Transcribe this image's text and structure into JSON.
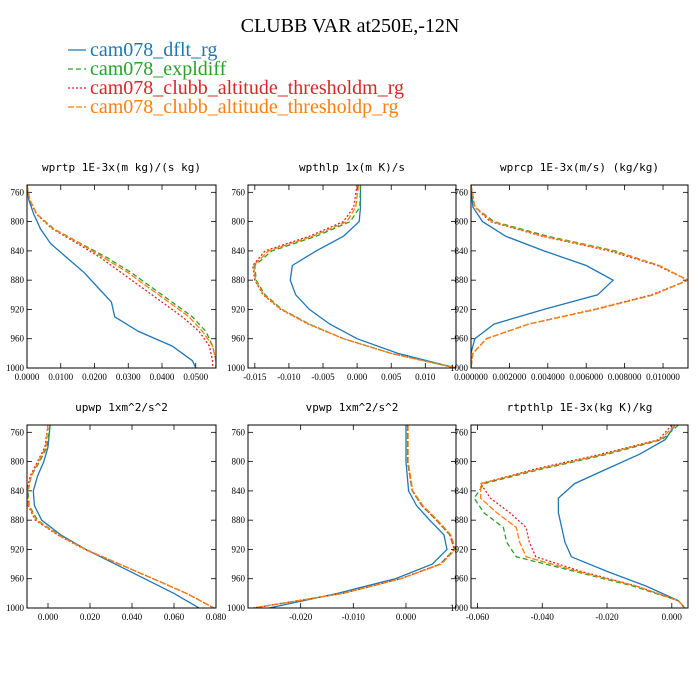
{
  "figure": {
    "title": "CLUBB VAR at250E,-12N"
  },
  "legend": [
    {
      "name": "cam078_dflt_rg",
      "color": "#1f77b4",
      "dash": ""
    },
    {
      "name": "cam078_expldiff",
      "color": "#2ca02c",
      "dash": "5,3"
    },
    {
      "name": "cam078_clubb_altitude_thresholdm_rg",
      "color": "#d62728",
      "dash": "2,2"
    },
    {
      "name": "cam078_clubb_altitude_thresholdp_rg",
      "color": "#ff7f0e",
      "dash": "6,2"
    }
  ],
  "chart_data": [
    {
      "type": "line",
      "title": "wprtp  1E-3x(m kg)/(s kg)",
      "xlim": [
        0.0,
        0.056
      ],
      "ylim": [
        1000,
        750
      ],
      "xticks": [
        0.0,
        0.01,
        0.02,
        0.03,
        0.04,
        0.05
      ],
      "xticklabels": [
        "0.0000",
        "0.0100",
        "0.0200",
        "0.0300",
        "0.0400",
        "0.0500"
      ],
      "yticks": [
        760,
        800,
        840,
        880,
        920,
        960,
        1000
      ],
      "y": [
        750,
        770,
        790,
        810,
        830,
        850,
        870,
        890,
        910,
        930,
        950,
        970,
        990,
        1000
      ],
      "series": [
        {
          "name": "cam078_dflt_rg",
          "x": [
            0.0,
            0.0005,
            0.002,
            0.004,
            0.007,
            0.012,
            0.017,
            0.021,
            0.025,
            0.026,
            0.033,
            0.043,
            0.049,
            0.05
          ]
        },
        {
          "name": "cam078_expldiff",
          "x": [
            0.0,
            0.0008,
            0.003,
            0.008,
            0.016,
            0.024,
            0.031,
            0.037,
            0.043,
            0.049,
            0.053,
            0.055,
            0.056,
            0.056
          ]
        },
        {
          "name": "cam078_clubb_altitude_thresholdm_rg",
          "x": [
            0.0,
            0.0007,
            0.0028,
            0.0075,
            0.015,
            0.022,
            0.028,
            0.034,
            0.04,
            0.046,
            0.051,
            0.054,
            0.055,
            0.055
          ]
        },
        {
          "name": "cam078_clubb_altitude_thresholdp_rg",
          "x": [
            0.0,
            0.0008,
            0.003,
            0.0078,
            0.0158,
            0.023,
            0.03,
            0.036,
            0.042,
            0.048,
            0.052,
            0.055,
            0.056,
            0.056
          ]
        }
      ]
    },
    {
      "type": "line",
      "title": "wpthlp  1x(m K)/s",
      "xlim": [
        -0.016,
        0.0145
      ],
      "ylim": [
        1000,
        750
      ],
      "xticks": [
        -0.015,
        -0.01,
        -0.005,
        0.0,
        0.005,
        0.01
      ],
      "xticklabels": [
        "-0.015",
        "-0.010",
        "-0.005",
        "0.000",
        "0.005",
        "0.010"
      ],
      "yticks": [
        760,
        800,
        840,
        880,
        920,
        960,
        1000
      ],
      "y": [
        750,
        780,
        800,
        820,
        840,
        860,
        880,
        900,
        920,
        940,
        960,
        980,
        1000
      ],
      "series": [
        {
          "name": "cam078_dflt_rg",
          "x": [
            0.0005,
            0.0005,
            0.0003,
            -0.002,
            -0.006,
            -0.0095,
            -0.0098,
            -0.009,
            -0.007,
            -0.004,
            0.0,
            0.006,
            0.0145
          ]
        },
        {
          "name": "cam078_expldiff",
          "x": [
            0.0005,
            0.0004,
            -0.001,
            -0.006,
            -0.0125,
            -0.015,
            -0.0148,
            -0.0135,
            -0.011,
            -0.007,
            -0.002,
            0.005,
            0.0145
          ]
        },
        {
          "name": "cam078_clubb_altitude_thresholdm_rg",
          "x": [
            0.0,
            -0.0005,
            -0.002,
            -0.007,
            -0.0135,
            -0.0153,
            -0.015,
            -0.0138,
            -0.0112,
            -0.0072,
            -0.002,
            0.005,
            0.0145
          ]
        },
        {
          "name": "cam078_clubb_altitude_thresholdp_rg",
          "x": [
            0.0002,
            -0.0002,
            -0.0015,
            -0.0065,
            -0.013,
            -0.0152,
            -0.0149,
            -0.0137,
            -0.0111,
            -0.0071,
            -0.002,
            0.005,
            0.0145
          ]
        }
      ]
    },
    {
      "type": "line",
      "title": "wprcp  1E-3x(m/s) (kg/kg)",
      "xlim": [
        0.0,
        0.0113
      ],
      "ylim": [
        1000,
        750
      ],
      "xticks": [
        0.0,
        0.002,
        0.004,
        0.006,
        0.008,
        0.01
      ],
      "xticklabels": [
        "0.000000",
        "0.002000",
        "0.004000",
        "0.006000",
        "0.008000",
        "0.010000"
      ],
      "yticks": [
        760,
        800,
        840,
        880,
        920,
        960,
        1000
      ],
      "y": [
        750,
        780,
        800,
        820,
        840,
        860,
        880,
        900,
        920,
        940,
        960,
        980,
        1000
      ],
      "series": [
        {
          "name": "cam078_dflt_rg",
          "x": [
            0.0,
            0.0001,
            0.0006,
            0.0018,
            0.0038,
            0.006,
            0.0074,
            0.0066,
            0.0038,
            0.0012,
            0.0002,
            0.0,
            0.0
          ]
        },
        {
          "name": "cam078_expldiff",
          "x": [
            0.0,
            0.0002,
            0.0012,
            0.004,
            0.0075,
            0.0098,
            0.0113,
            0.0095,
            0.0065,
            0.003,
            0.0008,
            0.0001,
            0.0
          ]
        },
        {
          "name": "cam078_clubb_altitude_thresholdm_rg",
          "x": [
            0.0,
            0.0002,
            0.001,
            0.0037,
            0.0072,
            0.0097,
            0.0113,
            0.0094,
            0.0064,
            0.003,
            0.0008,
            0.0001,
            0.0
          ]
        },
        {
          "name": "cam078_clubb_altitude_thresholdp_rg",
          "x": [
            0.0,
            0.0002,
            0.0011,
            0.0038,
            0.0074,
            0.0098,
            0.0113,
            0.0095,
            0.0065,
            0.003,
            0.0008,
            0.0001,
            0.0
          ]
        }
      ]
    },
    {
      "type": "line",
      "title": "upwp  1xm^2/s^2",
      "xlim": [
        -0.01,
        0.08
      ],
      "ylim": [
        1000,
        750
      ],
      "xticks": [
        0.0,
        0.02,
        0.04,
        0.06,
        0.08
      ],
      "xticklabels": [
        "0.000",
        "0.020",
        "0.040",
        "0.060",
        "0.080"
      ],
      "yticks": [
        760,
        800,
        840,
        880,
        920,
        960,
        1000
      ],
      "y": [
        750,
        780,
        800,
        820,
        840,
        860,
        880,
        900,
        920,
        940,
        960,
        980,
        1000
      ],
      "series": [
        {
          "name": "cam078_dflt_rg",
          "x": [
            0.001,
            0.0,
            -0.002,
            -0.005,
            -0.007,
            -0.0065,
            -0.003,
            0.006,
            0.018,
            0.032,
            0.046,
            0.06,
            0.072
          ]
        },
        {
          "name": "cam078_expldiff",
          "x": [
            0.001,
            -0.0005,
            -0.004,
            -0.008,
            -0.0095,
            -0.009,
            -0.005,
            0.005,
            0.018,
            0.034,
            0.05,
            0.066,
            0.079
          ]
        },
        {
          "name": "cam078_clubb_altitude_thresholdm_rg",
          "x": [
            0.0,
            -0.0015,
            -0.005,
            -0.0085,
            -0.01,
            -0.0095,
            -0.006,
            0.0045,
            0.0175,
            0.034,
            0.05,
            0.066,
            0.079
          ]
        },
        {
          "name": "cam078_clubb_altitude_thresholdp_rg",
          "x": [
            0.0,
            -0.001,
            -0.0045,
            -0.008,
            -0.0098,
            -0.0093,
            -0.0055,
            0.0048,
            0.0178,
            0.034,
            0.05,
            0.066,
            0.079
          ]
        }
      ]
    },
    {
      "type": "line",
      "title": "vpwp  1xm^2/s^2",
      "xlim": [
        -0.03,
        0.0095
      ],
      "ylim": [
        1000,
        750
      ],
      "xticks": [
        -0.02,
        -0.01,
        0.0
      ],
      "xticklabels": [
        "-0.020",
        "-0.010",
        "0.000"
      ],
      "yticks": [
        760,
        800,
        840,
        880,
        920,
        960,
        1000
      ],
      "y": [
        750,
        800,
        840,
        860,
        880,
        900,
        920,
        940,
        960,
        980,
        1000
      ],
      "series": [
        {
          "name": "cam078_dflt_rg",
          "x": [
            0.0,
            0.0,
            0.0005,
            0.002,
            0.0045,
            0.0072,
            0.0078,
            0.005,
            -0.002,
            -0.013,
            -0.026
          ]
        },
        {
          "name": "cam078_expldiff",
          "x": [
            0.0003,
            0.0003,
            0.0012,
            0.003,
            0.0058,
            0.0083,
            0.0092,
            0.0065,
            -0.001,
            -0.012,
            -0.029
          ]
        },
        {
          "name": "cam078_clubb_altitude_thresholdm_rg",
          "x": [
            0.0003,
            0.0003,
            0.0012,
            0.003,
            0.0058,
            0.0083,
            0.0092,
            0.0065,
            -0.001,
            -0.012,
            -0.029
          ]
        },
        {
          "name": "cam078_clubb_altitude_thresholdp_rg",
          "x": [
            0.0004,
            0.0004,
            0.0013,
            0.0032,
            0.006,
            0.0085,
            0.0094,
            0.0067,
            -0.001,
            -0.012,
            -0.029
          ]
        }
      ]
    },
    {
      "type": "line",
      "title": "rtpthlp  1E-3x(kg K)/kg",
      "xlim": [
        -0.062,
        0.005
      ],
      "ylim": [
        1000,
        750
      ],
      "xticks": [
        -0.06,
        -0.04,
        -0.02,
        0.0
      ],
      "xticklabels": [
        "-0.060",
        "-0.040",
        "-0.020",
        "0.000"
      ],
      "yticks": [
        760,
        800,
        840,
        880,
        920,
        960,
        1000
      ],
      "y": [
        750,
        770,
        790,
        810,
        830,
        850,
        870,
        890,
        910,
        930,
        950,
        970,
        990,
        1000
      ],
      "series": [
        {
          "name": "cam078_dflt_rg",
          "x": [
            0.001,
            -0.002,
            -0.01,
            -0.02,
            -0.03,
            -0.035,
            -0.035,
            -0.034,
            -0.033,
            -0.031,
            -0.02,
            -0.008,
            0.002,
            0.004
          ]
        },
        {
          "name": "cam078_expldiff",
          "x": [
            0.002,
            -0.003,
            -0.02,
            -0.04,
            -0.058,
            -0.061,
            -0.058,
            -0.052,
            -0.051,
            -0.048,
            -0.03,
            -0.012,
            0.002,
            0.004
          ]
        },
        {
          "name": "cam078_clubb_altitude_thresholdm_rg",
          "x": [
            0.0,
            -0.004,
            -0.022,
            -0.042,
            -0.059,
            -0.056,
            -0.05,
            -0.045,
            -0.044,
            -0.042,
            -0.028,
            -0.011,
            0.002,
            0.004
          ]
        },
        {
          "name": "cam078_clubb_altitude_thresholdp_rg",
          "x": [
            0.001,
            -0.0035,
            -0.021,
            -0.041,
            -0.059,
            -0.059,
            -0.054,
            -0.048,
            -0.047,
            -0.045,
            -0.029,
            -0.011,
            0.002,
            0.004
          ]
        }
      ]
    }
  ]
}
